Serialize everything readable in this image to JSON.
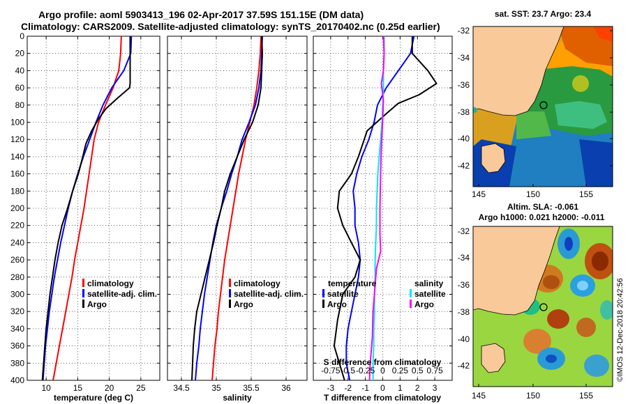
{
  "header": {
    "title_line1": "Argo profile: aoml 5903413_196 02-Apr-2017 37.59S 151.15E (DM data)",
    "title_line2": "Climatology: CARS2009. Satellite-adjusted climatology: synTS_20170402.nc (0.25d earlier)"
  },
  "colors": {
    "climatology": "#ff0000",
    "satellite_adj": "#0000ff",
    "argo": "#000000",
    "satellite_salinity": "#00e5ff",
    "argo_salinity": "#ff00ff",
    "land": "#f9c99a"
  },
  "chart_data": [
    {
      "id": "temperature",
      "type": "line",
      "xlabel": "temperature (deg C)",
      "ylabel": "",
      "xlim": [
        7,
        28
      ],
      "ylim": [
        400,
        0
      ],
      "xticks": [
        10,
        15,
        20,
        25
      ],
      "xtick_labels": [
        "10",
        "15",
        "20",
        "25"
      ],
      "yticks": [
        0,
        20,
        40,
        60,
        80,
        100,
        120,
        140,
        160,
        180,
        200,
        220,
        240,
        260,
        280,
        300,
        320,
        340,
        360,
        380,
        400
      ],
      "ytick_labels": [
        "0",
        "20",
        "40",
        "60",
        "80",
        "100",
        "120",
        "140",
        "160",
        "180",
        "200",
        "220",
        "240",
        "260",
        "280",
        "300",
        "320",
        "340",
        "360",
        "380",
        "400"
      ],
      "grid": true,
      "legend": [
        "climatology",
        "satellite-adj. clim.",
        "Argo"
      ],
      "legend_position": "lower-right",
      "series": [
        {
          "name": "climatology",
          "color": "#ff0000",
          "points": [
            [
              21.9,
              0
            ],
            [
              21.8,
              20
            ],
            [
              21.5,
              40
            ],
            [
              20.6,
              60
            ],
            [
              19.4,
              80
            ],
            [
              18.3,
              100
            ],
            [
              17.6,
              120
            ],
            [
              17.2,
              140
            ],
            [
              16.8,
              160
            ],
            [
              16.4,
              180
            ],
            [
              16.0,
              200
            ],
            [
              15.5,
              220
            ],
            [
              15.0,
              240
            ],
            [
              14.5,
              260
            ],
            [
              14.1,
              280
            ],
            [
              13.6,
              300
            ],
            [
              13.1,
              320
            ],
            [
              12.6,
              340
            ],
            [
              12.1,
              360
            ],
            [
              11.6,
              380
            ],
            [
              11.1,
              400
            ]
          ]
        },
        {
          "name": "satellite-adj. clim.",
          "color": "#0000ff",
          "points": [
            [
              23.5,
              0
            ],
            [
              23.4,
              20
            ],
            [
              22.3,
              40
            ],
            [
              20.4,
              60
            ],
            [
              19.0,
              80
            ],
            [
              17.9,
              100
            ],
            [
              16.9,
              120
            ],
            [
              15.9,
              140
            ],
            [
              15.0,
              160
            ],
            [
              14.2,
              180
            ],
            [
              13.5,
              200
            ],
            [
              12.9,
              220
            ],
            [
              12.3,
              240
            ],
            [
              11.8,
              260
            ],
            [
              11.3,
              280
            ],
            [
              10.9,
              300
            ],
            [
              10.5,
              320
            ],
            [
              10.2,
              340
            ],
            [
              9.9,
              360
            ],
            [
              9.7,
              380
            ],
            [
              9.5,
              400
            ]
          ]
        },
        {
          "name": "Argo",
          "color": "#000000",
          "points": [
            [
              23.3,
              0
            ],
            [
              23.3,
              20
            ],
            [
              23.3,
              40
            ],
            [
              23.3,
              55
            ],
            [
              23.2,
              60
            ],
            [
              21.3,
              72
            ],
            [
              19.5,
              84
            ],
            [
              18.3,
              96
            ],
            [
              17.2,
              110
            ],
            [
              16.3,
              125
            ],
            [
              15.8,
              140
            ],
            [
              15.1,
              160
            ],
            [
              14.2,
              180
            ],
            [
              13.4,
              200
            ],
            [
              12.5,
              220
            ],
            [
              11.9,
              240
            ],
            [
              11.4,
              260
            ],
            [
              11.0,
              280
            ],
            [
              10.6,
              300
            ],
            [
              10.3,
              320
            ],
            [
              10.0,
              340
            ],
            [
              9.8,
              360
            ],
            [
              9.6,
              380
            ],
            [
              9.4,
              400
            ]
          ]
        }
      ]
    },
    {
      "id": "salinity",
      "type": "line",
      "xlabel": "salinity",
      "ylabel": "",
      "xlim": [
        34.3,
        36.3
      ],
      "ylim": [
        400,
        0
      ],
      "xticks": [
        34.5,
        35,
        35.5,
        36
      ],
      "xtick_labels": [
        "34.5",
        "35",
        "35.5",
        "36"
      ],
      "grid": true,
      "legend": [
        "climatology",
        "satellite-adj. clim.",
        "Argo"
      ],
      "legend_position": "lower-right",
      "series": [
        {
          "name": "climatology",
          "color": "#ff0000",
          "points": [
            [
              35.64,
              0
            ],
            [
              35.63,
              20
            ],
            [
              35.61,
              40
            ],
            [
              35.58,
              60
            ],
            [
              35.54,
              80
            ],
            [
              35.48,
              100
            ],
            [
              35.42,
              120
            ],
            [
              35.37,
              140
            ],
            [
              35.32,
              160
            ],
            [
              35.28,
              180
            ],
            [
              35.24,
              200
            ],
            [
              35.2,
              220
            ],
            [
              35.16,
              240
            ],
            [
              35.12,
              260
            ],
            [
              35.09,
              280
            ],
            [
              35.06,
              300
            ],
            [
              35.03,
              320
            ],
            [
              35.01,
              340
            ],
            [
              34.98,
              360
            ],
            [
              34.96,
              380
            ],
            [
              34.94,
              400
            ]
          ]
        },
        {
          "name": "satellite-adj. clim.",
          "color": "#0000ff",
          "points": [
            [
              35.66,
              0
            ],
            [
              35.65,
              20
            ],
            [
              35.64,
              40
            ],
            [
              35.61,
              60
            ],
            [
              35.56,
              80
            ],
            [
              35.47,
              100
            ],
            [
              35.37,
              120
            ],
            [
              35.3,
              140
            ],
            [
              35.22,
              160
            ],
            [
              35.15,
              180
            ],
            [
              35.07,
              200
            ],
            [
              35.0,
              220
            ],
            [
              34.95,
              240
            ],
            [
              34.91,
              260
            ],
            [
              34.87,
              280
            ],
            [
              34.83,
              300
            ],
            [
              34.8,
              320
            ],
            [
              34.77,
              340
            ],
            [
              34.75,
              360
            ],
            [
              34.72,
              380
            ],
            [
              34.7,
              400
            ]
          ]
        },
        {
          "name": "Argo",
          "color": "#000000",
          "points": [
            [
              35.65,
              0
            ],
            [
              35.66,
              20
            ],
            [
              35.65,
              40
            ],
            [
              35.64,
              60
            ],
            [
              35.6,
              80
            ],
            [
              35.52,
              100
            ],
            [
              35.4,
              120
            ],
            [
              35.3,
              140
            ],
            [
              35.2,
              160
            ],
            [
              35.12,
              180
            ],
            [
              35.07,
              200
            ],
            [
              35.01,
              220
            ],
            [
              34.96,
              240
            ],
            [
              34.9,
              260
            ],
            [
              34.84,
              280
            ],
            [
              34.78,
              300
            ],
            [
              34.72,
              320
            ],
            [
              34.69,
              340
            ],
            [
              34.67,
              360
            ],
            [
              34.66,
              380
            ],
            [
              34.65,
              400
            ]
          ]
        }
      ]
    },
    {
      "id": "difference",
      "type": "line",
      "xlabel": "T difference from climatology",
      "xlabel_top": "S difference from climatology",
      "ylabel": "",
      "xlim": [
        -4,
        4
      ],
      "ylim": [
        400,
        0
      ],
      "xticks": [
        -3,
        -2,
        -1,
        0,
        1,
        2,
        3
      ],
      "xtick_labels": [
        "-3",
        "-2",
        "-1",
        "0",
        "1",
        "2",
        "3"
      ],
      "s_xlim": [
        -1,
        1
      ],
      "s_xticks": [
        -0.75,
        -0.5,
        -0.25,
        0,
        0.25,
        0.5,
        0.75
      ],
      "s_xtick_labels": [
        "-0.75",
        "-0.5",
        "-0.25",
        "0",
        "0.25",
        "0.5",
        "0.75"
      ],
      "grid": true,
      "legend_temperature": {
        "title": "temperature",
        "items": [
          "satellite",
          "Argo"
        ]
      },
      "legend_salinity": {
        "title": "salinity",
        "items": [
          "satellite",
          "Argo"
        ]
      },
      "series": [
        {
          "name": "temperature satellite",
          "color": "#0000ff",
          "units": "T",
          "points": [
            [
              1.8,
              0
            ],
            [
              1.6,
              20
            ],
            [
              0.9,
              40
            ],
            [
              0.2,
              60
            ],
            [
              -0.3,
              80
            ],
            [
              -0.5,
              100
            ],
            [
              -0.8,
              120
            ],
            [
              -1.2,
              140
            ],
            [
              -1.5,
              160
            ],
            [
              -1.7,
              180
            ],
            [
              -1.6,
              200
            ],
            [
              -1.6,
              220
            ],
            [
              -1.4,
              240
            ],
            [
              -1.3,
              260
            ],
            [
              -1.4,
              280
            ],
            [
              -1.6,
              300
            ],
            [
              -1.8,
              320
            ],
            [
              -2.0,
              340
            ],
            [
              -2.1,
              360
            ],
            [
              -2.1,
              380
            ],
            [
              -1.9,
              400
            ]
          ]
        },
        {
          "name": "temperature Argo",
          "color": "#000000",
          "units": "T",
          "points": [
            [
              1.7,
              0
            ],
            [
              1.7,
              20
            ],
            [
              2.6,
              40
            ],
            [
              3.1,
              55
            ],
            [
              2.1,
              68
            ],
            [
              0.9,
              78
            ],
            [
              0.2,
              90
            ],
            [
              -0.9,
              110
            ],
            [
              -1.4,
              140
            ],
            [
              -1.8,
              160
            ],
            [
              -2.5,
              180
            ],
            [
              -2.6,
              200
            ],
            [
              -2.3,
              220
            ],
            [
              -1.8,
              240
            ],
            [
              -1.3,
              260
            ],
            [
              -1.6,
              280
            ],
            [
              -2.3,
              300
            ],
            [
              -2.6,
              330
            ],
            [
              -2.8,
              360
            ],
            [
              -2.5,
              380
            ],
            [
              -2.2,
              400
            ]
          ]
        },
        {
          "name": "salinity satellite",
          "color": "#00e5ff",
          "units": "S",
          "points": [
            [
              0.02,
              0
            ],
            [
              0.02,
              20
            ],
            [
              0.01,
              40
            ],
            [
              0.01,
              60
            ],
            [
              0.0,
              80
            ],
            [
              -0.01,
              100
            ],
            [
              -0.03,
              120
            ],
            [
              -0.05,
              140
            ],
            [
              -0.07,
              160
            ],
            [
              -0.08,
              180
            ],
            [
              -0.09,
              200
            ],
            [
              -0.09,
              220
            ],
            [
              -0.1,
              240
            ],
            [
              -0.11,
              260
            ],
            [
              -0.11,
              280
            ],
            [
              -0.12,
              300
            ],
            [
              -0.12,
              320
            ],
            [
              -0.13,
              340
            ],
            [
              -0.13,
              360
            ],
            [
              -0.14,
              380
            ],
            [
              -0.14,
              400
            ]
          ]
        },
        {
          "name": "salinity Argo",
          "color": "#ff00ff",
          "units": "S",
          "points": [
            [
              0.01,
              0
            ],
            [
              0.02,
              20
            ],
            [
              0.01,
              40
            ],
            [
              -0.02,
              55
            ],
            [
              0.01,
              75
            ],
            [
              0.0,
              95
            ],
            [
              -0.02,
              130
            ],
            [
              -0.03,
              160
            ],
            [
              -0.04,
              200
            ],
            [
              -0.04,
              230
            ],
            [
              -0.03,
              250
            ],
            [
              -0.09,
              270
            ],
            [
              -0.11,
              290
            ],
            [
              -0.14,
              320
            ],
            [
              -0.15,
              350
            ],
            [
              -0.18,
              380
            ],
            [
              -0.19,
              400
            ]
          ]
        }
      ]
    }
  ],
  "maps": {
    "sst": {
      "title": "sat. SST: 23.7  Argo: 23.4",
      "lon_ticks": [
        "145",
        "150",
        "155"
      ],
      "lat_ticks": [
        "-32",
        "-34",
        "-36",
        "-38",
        "-40",
        "-42"
      ]
    },
    "sla": {
      "title_line1": "Altim. SLA: -0.061",
      "title_line2": "Argo h1000: 0.021 h2000: -0.011",
      "lon_ticks": [
        "145",
        "150",
        "155"
      ],
      "lat_ticks": [
        "-32",
        "-34",
        "-36",
        "-38",
        "-40",
        "-42"
      ]
    }
  },
  "footer": {
    "copyright": "©IMOS 12-Dec-2018 20:42:56"
  }
}
